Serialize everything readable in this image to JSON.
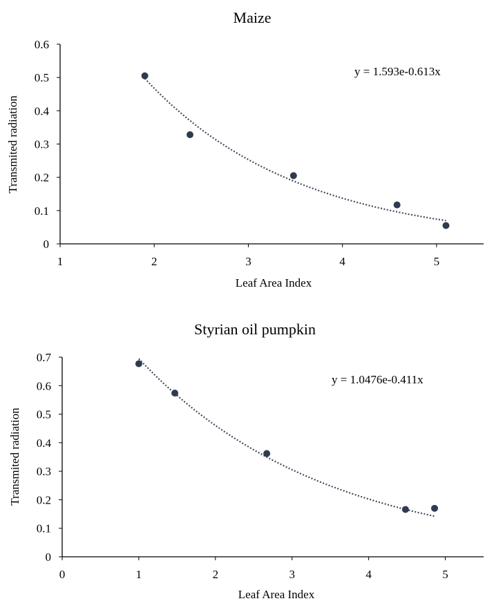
{
  "chart_data": [
    {
      "type": "scatter",
      "title": "Maize",
      "xlabel": "Leaf Area Index",
      "ylabel": "Transmited radiation",
      "xlim": [
        1,
        5.5
      ],
      "ylim": [
        0,
        0.6
      ],
      "xticks": [
        1,
        2,
        3,
        4,
        5
      ],
      "yticks": [
        0,
        0.1,
        0.2,
        0.3,
        0.4,
        0.5,
        0.6
      ],
      "series": [
        {
          "x": [
            1.9,
            2.38,
            3.48,
            4.58,
            5.1
          ],
          "y": [
            0.505,
            0.328,
            0.205,
            0.117,
            0.055
          ]
        }
      ],
      "trendline": {
        "type": "exponential",
        "a": 1.593,
        "b": -0.613,
        "x_range": [
          1.9,
          5.1
        ],
        "style": "dotted"
      },
      "equation": "y = 1.593e-0.613x",
      "marker_color": "#2f3b4f",
      "grid": false
    },
    {
      "type": "scatter",
      "title": "Styrian oil pumpkin",
      "xlabel": "Leaf Area Index",
      "ylabel": "Transmited radiation",
      "xlim": [
        0,
        5.5
      ],
      "ylim": [
        0,
        0.7
      ],
      "xticks": [
        0,
        1,
        2,
        3,
        4,
        5
      ],
      "yticks": [
        0,
        0.1,
        0.2,
        0.3,
        0.4,
        0.5,
        0.6,
        0.7
      ],
      "series": [
        {
          "x": [
            1.0,
            1.47,
            2.67,
            4.48,
            4.86
          ],
          "y": [
            0.677,
            0.574,
            0.362,
            0.166,
            0.17
          ]
        }
      ],
      "trendline": {
        "type": "exponential",
        "a": 1.0476,
        "b": -0.411,
        "x_range": [
          1.0,
          4.86
        ],
        "style": "dotted"
      },
      "equation": "y = 1.0476e-0.411x",
      "marker_color": "#2f3b4f",
      "grid": false
    }
  ]
}
